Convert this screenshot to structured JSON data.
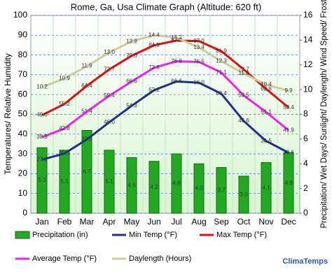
{
  "chart_data": {
    "type": "combo",
    "title": "Rome, Ga, Usa Climate Graph (Altitude: 620 ft)",
    "y_label": "Temperatures/ Relative Humidity",
    "y2_label": "Precipitation/ Wet Days/ Sunlight/ Daylength/ Wind Speed/ Frost",
    "watermark": "ClimaTemps",
    "categories": [
      "Jan",
      "Feb",
      "Mar",
      "Apr",
      "May",
      "Jun",
      "Jul",
      "Aug",
      "Sep",
      "Oct",
      "Nov",
      "Dec"
    ],
    "ylim": [
      0,
      100
    ],
    "yticks": [
      0,
      10,
      20,
      30,
      40,
      50,
      60,
      70,
      80,
      90,
      100
    ],
    "y2lim": [
      0,
      16
    ],
    "y2ticks": [
      0,
      2,
      4,
      6,
      8,
      10,
      12,
      14,
      16
    ],
    "grid": true,
    "series": [
      {
        "name": "Precipitation (in)",
        "type": "bar",
        "axis": "y2",
        "color": "#22aa22",
        "values": [
          5.3,
          5.1,
          6.7,
          5.1,
          4.5,
          4.2,
          4.8,
          4.0,
          3.7,
          3.0,
          4.1,
          4.9
        ],
        "value_labels": [
          "5.3",
          "5.1",
          "6.7",
          "5.1",
          "4.5",
          "4.2",
          "4.8",
          "4.0",
          "3.7",
          "3.0",
          "4.1",
          "4.9"
        ]
      },
      {
        "name": "Min Temp (°F)",
        "type": "line",
        "color": "#1f2f8a",
        "values": [
          27.1,
          30.2,
          37.3,
          46.0,
          54.3,
          62.2,
          66.6,
          66.0,
          60.4,
          46.6,
          36.5,
          30.6
        ],
        "value_labels": [
          "27.1",
          "30.2",
          "37.3",
          "46.0",
          "54.3",
          "62.2",
          "66.6",
          "66.0",
          "60.4",
          "46.6",
          "36.5",
          "30.6"
        ]
      },
      {
        "name": "Max Temp (°F)",
        "type": "line",
        "color": "#dd1111",
        "values": [
          49.6,
          55.2,
          64.4,
          72.7,
          79.6,
          84.9,
          87.3,
          87.0,
          81.9,
          72.7,
          62.8,
          53.4
        ],
        "value_labels": [
          "49.6",
          "55.2",
          "64.4",
          "72.7",
          "79.6",
          "84.9",
          "87.3",
          "87.0",
          "81.9",
          "72.7",
          "62.8",
          "53.4"
        ]
      },
      {
        "name": "Average Temp (°F)",
        "type": "line",
        "color": "#ee22ee",
        "values": [
          38.5,
          42.8,
          51.4,
          59.4,
          66.6,
          73.6,
          76.8,
          76.5,
          71.1,
          59.5,
          51.1,
          41.9
        ]
      },
      {
        "name": "Daylength (Hours)",
        "type": "line",
        "axis": "y2",
        "color": "#cccc99",
        "values": [
          10.2,
          10.9,
          11.9,
          13.0,
          13.9,
          14.4,
          14.2,
          13.4,
          12.3,
          11.3,
          10.4,
          9.9
        ],
        "value_labels": [
          "10.2",
          "10.9",
          "11.9",
          "13.0",
          "13.9",
          "14.4",
          "14.2",
          "13.4",
          "12.3",
          "11.3",
          "10.4",
          "9.9"
        ]
      }
    ]
  }
}
